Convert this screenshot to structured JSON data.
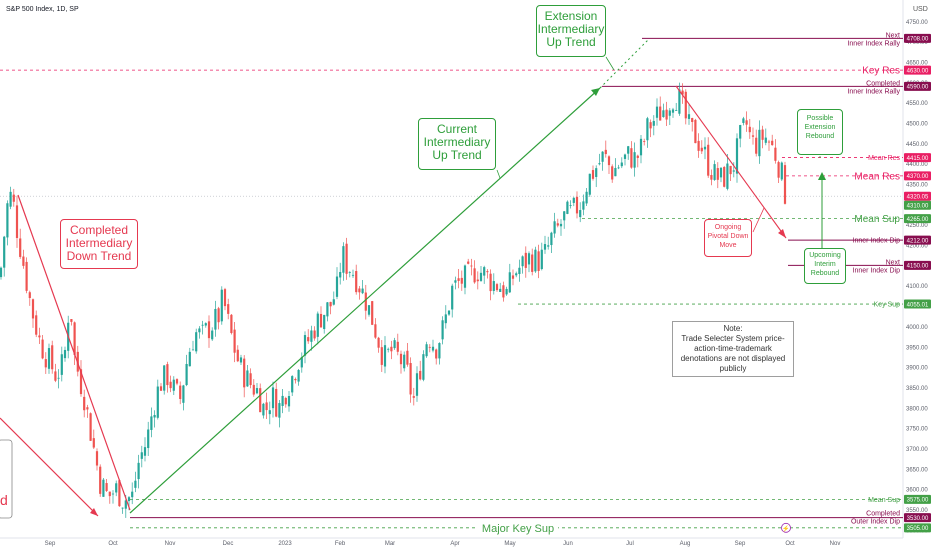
{
  "header": {
    "symbol": "S&P 500 Index, 1D, SP",
    "currency": "USD"
  },
  "colors": {
    "up": "#26a69a",
    "down": "#ef5350",
    "trend_green": "#2e9e3a",
    "trend_red": "#e53950",
    "maroon": "#880e4f",
    "res": "#e91e63",
    "sup": "#43a047"
  },
  "chart_data": {
    "type": "candlestick",
    "title": "S&P 500 Index, 1D, SP",
    "ylim": [
      3480,
      4790
    ],
    "y_scale": "linear",
    "yticks": [
      3500,
      3550,
      3600,
      3650,
      3700,
      3750,
      3800,
      3850,
      3900,
      3950,
      4000,
      4050,
      4100,
      4150,
      4200,
      4250,
      4300,
      4350,
      4400,
      4450,
      4500,
      4550,
      4600,
      4650,
      4700,
      4750
    ],
    "x_months": [
      "Sep",
      "Oct",
      "Nov",
      "Dec",
      "2023",
      "Feb",
      "Mar",
      "Apr",
      "May",
      "Jun",
      "Jul",
      "Aug",
      "Sep",
      "Oct",
      "Nov"
    ],
    "price_path": [
      [
        0,
        4120
      ],
      [
        4,
        4220
      ],
      [
        8,
        4310
      ],
      [
        12,
        4325
      ],
      [
        17,
        4240
      ],
      [
        23,
        4160
      ],
      [
        31,
        4050
      ],
      [
        40,
        3960
      ],
      [
        48,
        3920
      ],
      [
        56,
        3880
      ],
      [
        64,
        3910
      ],
      [
        70,
        4080
      ],
      [
        74,
        3930
      ],
      [
        84,
        3830
      ],
      [
        93,
        3710
      ],
      [
        100,
        3620
      ],
      [
        108,
        3580
      ],
      [
        116,
        3600
      ],
      [
        123,
        3575
      ],
      [
        132,
        3580
      ],
      [
        139,
        3670
      ],
      [
        147,
        3720
      ],
      [
        153,
        3800
      ],
      [
        160,
        3860
      ],
      [
        167,
        3880
      ],
      [
        175,
        3840
      ],
      [
        180,
        3820
      ],
      [
        188,
        3930
      ],
      [
        195,
        3985
      ],
      [
        202,
        3975
      ],
      [
        210,
        4000
      ],
      [
        218,
        4020
      ],
      [
        223,
        4070
      ],
      [
        228,
        4010
      ],
      [
        236,
        3930
      ],
      [
        242,
        3890
      ],
      [
        250,
        3860
      ],
      [
        258,
        3840
      ],
      [
        265,
        3790
      ],
      [
        272,
        3830
      ],
      [
        279,
        3800
      ],
      [
        287,
        3850
      ],
      [
        293,
        3880
      ],
      [
        300,
        3930
      ],
      [
        307,
        3960
      ],
      [
        315,
        4000
      ],
      [
        322,
        4030
      ],
      [
        330,
        4050
      ],
      [
        337,
        4090
      ],
      [
        342,
        4180
      ],
      [
        347,
        4150
      ],
      [
        352,
        4140
      ],
      [
        358,
        4110
      ],
      [
        365,
        4070
      ],
      [
        372,
        4020
      ],
      [
        378,
        3970
      ],
      [
        384,
        3920
      ],
      [
        392,
        3940
      ],
      [
        400,
        3920
      ],
      [
        408,
        3880
      ],
      [
        413,
        3810
      ],
      [
        420,
        3900
      ],
      [
        428,
        3980
      ],
      [
        436,
        3950
      ],
      [
        444,
        4000
      ],
      [
        452,
        4090
      ],
      [
        460,
        4110
      ],
      [
        468,
        4120
      ],
      [
        476,
        4140
      ],
      [
        484,
        4130
      ],
      [
        492,
        4110
      ],
      [
        500,
        4100
      ],
      [
        507,
        4080
      ],
      [
        514,
        4130
      ],
      [
        522,
        4150
      ],
      [
        530,
        4170
      ],
      [
        538,
        4160
      ],
      [
        546,
        4180
      ],
      [
        552,
        4220
      ],
      [
        558,
        4240
      ],
      [
        565,
        4270
      ],
      [
        572,
        4280
      ],
      [
        580,
        4300
      ],
      [
        588,
        4360
      ],
      [
        596,
        4390
      ],
      [
        604,
        4420
      ],
      [
        612,
        4380
      ],
      [
        620,
        4400
      ],
      [
        628,
        4420
      ],
      [
        636,
        4410
      ],
      [
        642,
        4440
      ],
      [
        648,
        4490
      ],
      [
        655,
        4510
      ],
      [
        662,
        4530
      ],
      [
        669,
        4550
      ],
      [
        675,
        4570
      ],
      [
        681,
        4550
      ],
      [
        688,
        4490
      ],
      [
        695,
        4470
      ],
      [
        702,
        4440
      ],
      [
        708,
        4400
      ],
      [
        715,
        4370
      ],
      [
        722,
        4360
      ],
      [
        728,
        4380
      ],
      [
        734,
        4400
      ],
      [
        740,
        4460
      ],
      [
        746,
        4500
      ],
      [
        752,
        4450
      ],
      [
        758,
        4450
      ],
      [
        764,
        4470
      ],
      [
        770,
        4450
      ],
      [
        776,
        4420
      ],
      [
        781,
        4380
      ],
      [
        786,
        4315
      ]
    ],
    "levels": [
      {
        "label": "Next Inner Index Rally",
        "price": 4708.0,
        "color": "#880e4f"
      },
      {
        "label": "Key Res",
        "price": 4630.0,
        "color": "#e91e63"
      },
      {
        "label": "Completed Inner Index Rally",
        "price": 4590.0,
        "color": "#880e4f"
      },
      {
        "label": "Mean Res",
        "price": 4415.0,
        "color": "#e91e63"
      },
      {
        "label": "Mean Res",
        "price": 4370.0,
        "color": "#e91e63"
      },
      {
        "label": "Mean Sup",
        "price": 4265.0,
        "color": "#43a047"
      },
      {
        "label": "Inner Index Dip",
        "price": 4212.0,
        "color": "#880e4f"
      },
      {
        "label": "Next Inner Index Dip",
        "price": 4150.0,
        "color": "#880e4f"
      },
      {
        "label": "Key Sup",
        "price": 4055.01,
        "color": "#43a047"
      },
      {
        "label": "Mean Sup",
        "price": 3575.0,
        "color": "#43a047"
      },
      {
        "label": "Completed Outer Index Dip",
        "price": 3530.0,
        "color": "#880e4f"
      },
      {
        "label": "Major Key Sup",
        "price": 3505.0,
        "color": "#43a047"
      }
    ],
    "price_tags": [
      {
        "value": "4708.00",
        "price": 4708.0,
        "color": "#880e4f"
      },
      {
        "value": "4630.00",
        "price": 4630.0,
        "color": "#e91e63"
      },
      {
        "value": "4590.00",
        "price": 4590.0,
        "color": "#880e4f"
      },
      {
        "value": "4415.00",
        "price": 4415.0,
        "color": "#e91e63"
      },
      {
        "value": "4370.00",
        "price": 4370.0,
        "color": "#e91e63"
      },
      {
        "value": "4320.05",
        "price": 4320.05,
        "color": "#e91e63"
      },
      {
        "value": "4310.00",
        "price": 4310.0,
        "color": "#43a047"
      },
      {
        "value": "4265.00",
        "price": 4265.0,
        "color": "#43a047"
      },
      {
        "value": "4212.00",
        "price": 4212.0,
        "color": "#880e4f"
      },
      {
        "value": "4150.00",
        "price": 4150.0,
        "color": "#880e4f"
      },
      {
        "value": "4055.01",
        "price": 4055.01,
        "color": "#43a047"
      },
      {
        "value": "3575.00",
        "price": 3575.0,
        "color": "#43a047"
      },
      {
        "value": "3530.00",
        "price": 3530.0,
        "color": "#880e4f"
      },
      {
        "value": "3505.00",
        "price": 3505.0,
        "color": "#43a047"
      }
    ],
    "annotations": {
      "extension_trend": "Extension Intermediary Up Trend",
      "current_trend": "Current Intermediary Up Trend",
      "completed_down": "Completed Intermediary Down Trend",
      "possible_rebound": "Possible Extension Rebound",
      "ongoing_move": "Ongoing Pivotal Down Move",
      "upcoming_rebound": "Upcoming Interim Rebound",
      "partial_left": "d"
    },
    "note": {
      "title": "Note:",
      "body": "Trade Selecter System price-action-time-trademark denotations are not displayed publicly"
    }
  }
}
